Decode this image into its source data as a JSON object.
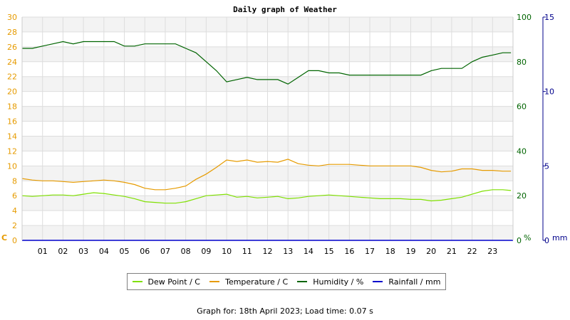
{
  "chart_data": {
    "type": "line",
    "title": "Daily graph of Weather",
    "x_ticks": [
      "01",
      "02",
      "03",
      "04",
      "05",
      "06",
      "07",
      "08",
      "09",
      "10",
      "11",
      "12",
      "13",
      "14",
      "15",
      "16",
      "17",
      "18",
      "19",
      "20",
      "21",
      "22",
      "23"
    ],
    "xlim": [
      0,
      24
    ],
    "axes": {
      "left": {
        "unit_label": "C",
        "range": [
          0,
          30
        ],
        "ticks": [
          0,
          2,
          4,
          6,
          8,
          10,
          12,
          14,
          16,
          18,
          20,
          22,
          24,
          26,
          28,
          30
        ],
        "color": "#e69b00"
      },
      "right1": {
        "unit_label": "%",
        "range": [
          0,
          100
        ],
        "ticks": [
          0,
          20,
          40,
          60,
          80,
          100
        ],
        "color": "#006400"
      },
      "right2": {
        "unit_label": "mm",
        "range": [
          0,
          15
        ],
        "ticks": [
          0,
          5,
          10,
          15
        ],
        "color": "#00008b"
      }
    },
    "grid": true,
    "legend_placement": "bottom",
    "series": [
      {
        "name": "Dew Point / C",
        "axis": "left",
        "color": "#7fe000",
        "x": [
          0,
          0.5,
          1,
          1.5,
          2,
          2.5,
          3,
          3.5,
          4,
          4.5,
          5,
          5.5,
          6,
          6.5,
          7,
          7.5,
          8,
          8.5,
          9,
          9.5,
          10,
          10.5,
          11,
          11.5,
          12,
          12.5,
          13,
          13.5,
          14,
          14.5,
          15,
          15.5,
          16,
          16.5,
          17,
          17.5,
          18,
          18.5,
          19,
          19.5,
          20,
          20.5,
          21,
          21.5,
          22,
          22.5,
          23,
          23.5,
          23.9
        ],
        "y": [
          6.0,
          5.9,
          6.0,
          6.1,
          6.1,
          6.0,
          6.2,
          6.4,
          6.3,
          6.1,
          5.9,
          5.6,
          5.2,
          5.1,
          5.0,
          5.0,
          5.2,
          5.6,
          6.0,
          6.1,
          6.2,
          5.8,
          5.9,
          5.7,
          5.8,
          5.9,
          5.6,
          5.7,
          5.9,
          6.0,
          6.1,
          6.0,
          5.9,
          5.8,
          5.7,
          5.6,
          5.6,
          5.6,
          5.5,
          5.5,
          5.3,
          5.4,
          5.6,
          5.8,
          6.2,
          6.6,
          6.8,
          6.8,
          6.7
        ]
      },
      {
        "name": "Temperature / C",
        "axis": "left",
        "color": "#e69b00",
        "x": [
          0,
          0.5,
          1,
          1.5,
          2,
          2.5,
          3,
          3.5,
          4,
          4.5,
          5,
          5.5,
          6,
          6.5,
          7,
          7.5,
          8,
          8.5,
          9,
          9.5,
          10,
          10.5,
          11,
          11.5,
          12,
          12.5,
          13,
          13.5,
          14,
          14.5,
          15,
          15.5,
          16,
          16.5,
          17,
          17.5,
          18,
          18.5,
          19,
          19.5,
          20,
          20.5,
          21,
          21.5,
          22,
          22.5,
          23,
          23.5,
          23.9
        ],
        "y": [
          8.3,
          8.1,
          8.0,
          8.0,
          7.9,
          7.8,
          7.9,
          8.0,
          8.1,
          8.0,
          7.8,
          7.5,
          7.0,
          6.8,
          6.8,
          7.0,
          7.3,
          8.2,
          8.9,
          9.8,
          10.8,
          10.6,
          10.8,
          10.5,
          10.6,
          10.5,
          10.9,
          10.3,
          10.1,
          10.0,
          10.2,
          10.2,
          10.2,
          10.1,
          10.0,
          10.0,
          10.0,
          10.0,
          10.0,
          9.8,
          9.4,
          9.2,
          9.3,
          9.6,
          9.6,
          9.4,
          9.4,
          9.3,
          9.3
        ]
      },
      {
        "name": "Humidity / %",
        "axis": "right1",
        "color": "#006400",
        "x": [
          0,
          0.5,
          1,
          1.5,
          2,
          2.5,
          3,
          3.5,
          4,
          4.5,
          5,
          5.5,
          6,
          6.5,
          7,
          7.5,
          8,
          8.5,
          9,
          9.5,
          10,
          10.5,
          11,
          11.5,
          12,
          12.5,
          13,
          13.5,
          14,
          14.5,
          15,
          15.5,
          16,
          16.5,
          17,
          17.5,
          18,
          18.5,
          19,
          19.5,
          20,
          20.5,
          21,
          21.5,
          22,
          22.5,
          23,
          23.5,
          23.9
        ],
        "y": [
          86,
          86,
          87,
          88,
          89,
          88,
          89,
          89,
          89,
          89,
          87,
          87,
          88,
          88,
          88,
          88,
          86,
          84,
          80,
          76,
          71,
          72,
          73,
          72,
          72,
          72,
          70,
          73,
          76,
          76,
          75,
          75,
          74,
          74,
          74,
          74,
          74,
          74,
          74,
          74,
          76,
          77,
          77,
          77,
          80,
          82,
          83,
          84,
          84
        ]
      },
      {
        "name": "Rainfall / mm",
        "axis": "right2",
        "color": "#0000cc",
        "x": [
          0,
          24
        ],
        "y": [
          0,
          0
        ]
      }
    ]
  },
  "footer": {
    "text": "Graph for: 18th April 2023; Load time: 0.07 s"
  }
}
